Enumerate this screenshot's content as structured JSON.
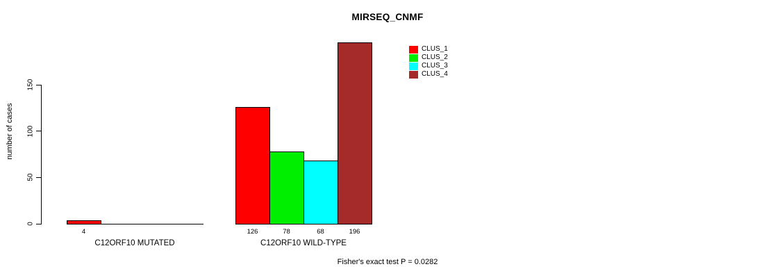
{
  "chart_data": {
    "type": "bar",
    "title": "MIRSEQ_CNMF",
    "ylabel": "number of cases",
    "yticks": [
      0,
      50,
      100,
      150
    ],
    "ylim": [
      0,
      150
    ],
    "grid": false,
    "legend_position": "top-right",
    "legend": [
      {
        "name": "CLUS_1",
        "color": "#FF0000"
      },
      {
        "name": "CLUS_2",
        "color": "#00EE00"
      },
      {
        "name": "CLUS_3",
        "color": "#00FFFF"
      },
      {
        "name": "CLUS_4",
        "color": "#A52A2A"
      }
    ],
    "categories": [
      "C12ORF10 MUTATED",
      "C12ORF10 WILD-TYPE"
    ],
    "groups": [
      {
        "label": "C12ORF10 MUTATED",
        "values": [
          4,
          0,
          0,
          0
        ]
      },
      {
        "label": "C12ORF10 WILD-TYPE",
        "values": [
          126,
          78,
          68,
          196
        ]
      }
    ],
    "footnote": "Fisher's exact test P = 0.0282",
    "bar_border_color": "#000000",
    "text_color": "#000000"
  }
}
